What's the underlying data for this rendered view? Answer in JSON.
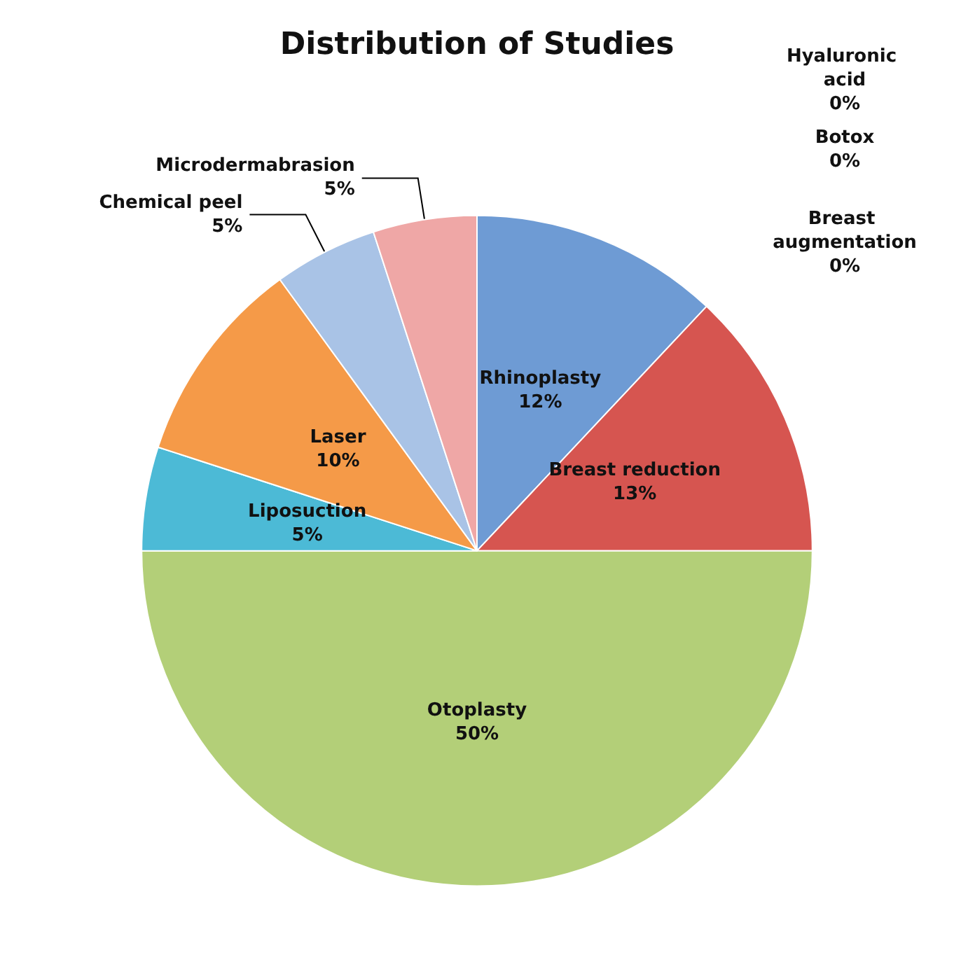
{
  "chart_data": {
    "type": "pie",
    "title": "Distribution of Studies",
    "categories": [
      "Rhinoplasty",
      "Breast reduction",
      "Otoplasty",
      "Liposuction",
      "Laser",
      "Chemical peel",
      "Microdermabrasion",
      "Hyaluronic acid",
      "Botox",
      "Breast augmentation"
    ],
    "values": [
      12,
      13,
      50,
      5,
      10,
      5,
      5,
      0,
      0,
      0
    ],
    "value_labels": [
      "12%",
      "13%",
      "50%",
      "5%",
      "10%",
      "5%",
      "5%",
      "0%",
      "0%",
      "0%"
    ],
    "colors": [
      "#6e9bd4",
      "#d65550",
      "#b3cf78",
      "#4cbad6",
      "#f59a48",
      "#a9c3e6",
      "#efa7a6",
      "#8064a2",
      "#4bacc6",
      "#9bbb59"
    ]
  }
}
